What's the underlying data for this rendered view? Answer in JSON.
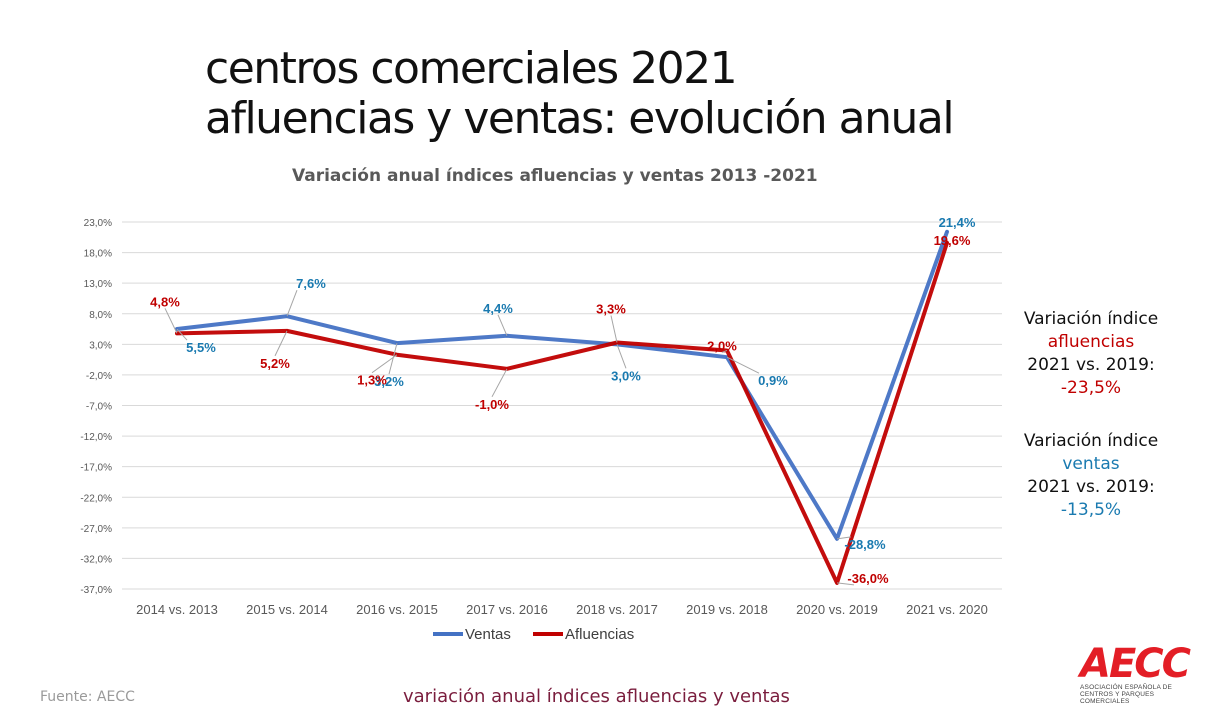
{
  "headline": {
    "line1": "centros comerciales 2021",
    "line2": "afluencias y ventas: evolución anual"
  },
  "chart_data": {
    "type": "line",
    "title": "Variación anual índices afluencias y ventas 2013 -2021",
    "categories": [
      "2014 vs. 2013",
      "2015 vs. 2014",
      "2016 vs. 2015",
      "2017 vs. 2016",
      "2018 vs. 2017",
      "2019 vs. 2018",
      "2020 vs. 2019",
      "2021 vs. 2020"
    ],
    "y_ticks": [
      "23,0%",
      "18,0%",
      "13,0%",
      "8,0%",
      "3,0%",
      "-2,0%",
      "-7,0%",
      "-12,0%",
      "-17,0%",
      "-22,0%",
      "-27,0%",
      "-32,0%",
      "-37,0%"
    ],
    "ylim": [
      -37,
      23
    ],
    "grid": true,
    "legend_position": "bottom",
    "series": [
      {
        "name": "Ventas",
        "color": "#4472c4",
        "values": [
          5.5,
          7.6,
          3.2,
          4.4,
          3.0,
          0.9,
          -28.8,
          21.4
        ],
        "labels": [
          "5,5%",
          "7,6%",
          "3,2%",
          "4,4%",
          "3,0%",
          "0,9%",
          "-28,8%",
          "21,4%"
        ],
        "label_color": "#1a7ab0"
      },
      {
        "name": "Afluencias",
        "color": "#c00000",
        "values": [
          4.8,
          5.2,
          1.3,
          -1.0,
          3.3,
          2.0,
          -36.0,
          19.6
        ],
        "labels": [
          "4,8%",
          "5,2%",
          "1,3%",
          "-1,0%",
          "3,3%",
          "2,0%",
          "-36,0%",
          "19,6%"
        ],
        "label_color": "#c00000"
      }
    ]
  },
  "side_note": {
    "block1": {
      "l1": "Variación índice",
      "l2": "afluencias",
      "l3": "2021 vs. 2019:",
      "l4": "-23,5%"
    },
    "block2": {
      "l1": "Variación índice",
      "l2": "ventas",
      "l3": "2021 vs. 2019:",
      "l4": "-13,5%"
    }
  },
  "source": "Fuente: AECC",
  "caption": "variación anual índices afluencias y ventas",
  "logo": {
    "mark": "AECC",
    "sub1": "Asociación Española de",
    "sub2": "Centros y Parques Comerciales"
  }
}
